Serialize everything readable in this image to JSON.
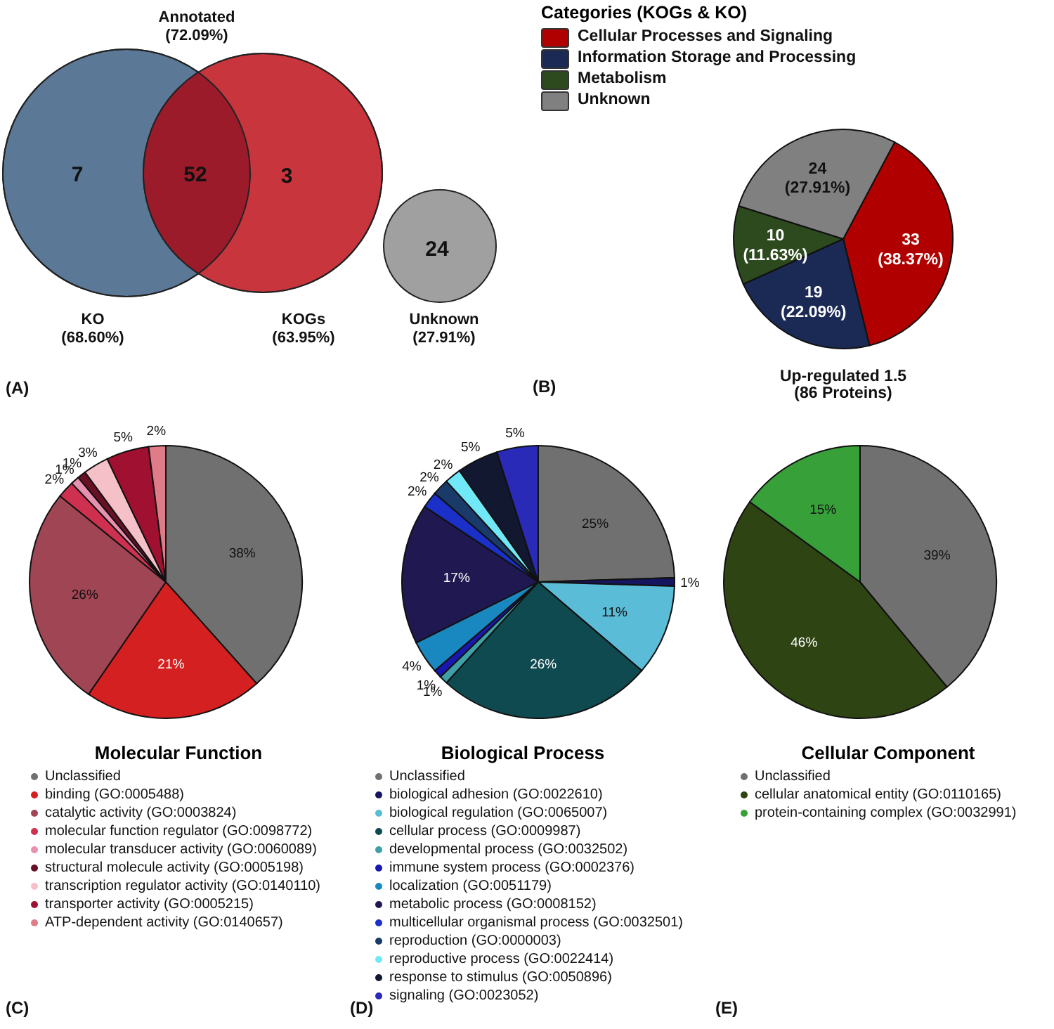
{
  "chart_data": [
    {
      "type": "other",
      "categories": [
        null,
        null,
        null,
        null
      ],
      "values": [
        7,
        52,
        3,
        24
      ],
      "data_labels": true,
      "colors": [
        "#5b7896",
        "#9b1b2b",
        "#c8353d",
        "#a0a0a0"
      ],
      "annotations": [
        "Annotated\n(72.09%)",
        "KO\n(68.60%)",
        "KOGs\n(63.95%)",
        "Unknown\n(27.91%)",
        "(A)"
      ]
    },
    {
      "type": "pie",
      "legend_title": "Categories (KOGs & KO)",
      "legend": "top left",
      "categories": [
        "Cellular Processes and Signaling",
        "Information Storage and Processing",
        "Metabolism",
        "Unknown"
      ],
      "values": [
        33,
        19,
        10,
        24
      ],
      "colors": [
        "#b00000",
        "#1b2a55",
        "#2d4a1e",
        "#808080"
      ],
      "value_labels": [
        "33\n(38.37%)",
        "19\n(22.09%)",
        "10\n(11.63%)",
        "24\n(27.91%)"
      ],
      "annotations": [
        "Up-regulated 1.5\n(86 Proteins)",
        "(B)"
      ]
    },
    {
      "type": "pie",
      "legend_title": "Molecular Function",
      "legend": "bottom",
      "categories": [
        "Unclassified",
        "binding (GO:0005488)",
        "catalytic activity (GO:0003824)",
        "molecular function regulator (GO:0098772)",
        "molecular transducer activity (GO:0060089)",
        "structural molecule activity (GO:0005198)",
        "transcription regulator activity (GO:0140110)",
        "transporter activity (GO:0005215)",
        "ATP-dependent activity (GO:0140657)"
      ],
      "values": [
        38,
        21,
        26,
        2,
        1,
        1,
        3,
        5,
        2
      ],
      "colors": [
        "#707070",
        "#d42020",
        "#a04553",
        "#d03050",
        "#e890b0",
        "#6a1025",
        "#f5c0c8",
        "#a01030",
        "#e07c88"
      ],
      "value_labels": [
        "38%",
        "21%",
        "26%",
        "2%",
        "1%",
        "1%",
        "3%",
        "5%",
        "2%"
      ],
      "annotations": [
        "(C)"
      ]
    },
    {
      "type": "pie",
      "legend_title": "Biological Process",
      "legend": "bottom",
      "categories": [
        "Unclassified",
        "biological adhesion (GO:0022610)",
        "biological regulation (GO:0065007)",
        "cellular process (GO:0009987)",
        "developmental process (GO:0032502)",
        "immune system process (GO:0002376)",
        "localization (GO:0051179)",
        "metabolic process (GO:0008152)",
        "multicellular organismal process (GO:0032501)",
        "reproduction (GO:0000003)",
        "reproductive process (GO:0022414)",
        "response to stimulus (GO:0050896)",
        "signaling (GO:0023052)"
      ],
      "values": [
        25,
        1,
        11,
        26,
        1,
        1,
        4,
        17,
        2,
        2,
        2,
        5,
        5
      ],
      "colors": [
        "#707070",
        "#151560",
        "#5bbcd8",
        "#0f4a50",
        "#3fa0a8",
        "#1818b0",
        "#1a88c0",
        "#201850",
        "#1a30c8",
        "#1a3a6a",
        "#70e8f8",
        "#121830",
        "#2a2ab8"
      ],
      "value_labels": [
        "25%",
        "1%",
        "11%",
        "26%",
        "1%",
        "1%",
        "4%",
        "17%",
        "2%",
        "2%",
        "2%",
        "5%",
        "5%"
      ],
      "annotations": [
        "(D)"
      ]
    },
    {
      "type": "pie",
      "legend_title": "Cellular Component",
      "legend": "bottom",
      "categories": [
        "Unclassified",
        "cellular anatomical entity (GO:0110165)",
        "protein-containing complex (GO:0032991)"
      ],
      "values": [
        39,
        46,
        15
      ],
      "colors": [
        "#707070",
        "#2e4412",
        "#38a038"
      ],
      "value_labels": [
        "39%",
        "46%",
        "15%"
      ],
      "annotations": [
        "(E)"
      ]
    }
  ]
}
